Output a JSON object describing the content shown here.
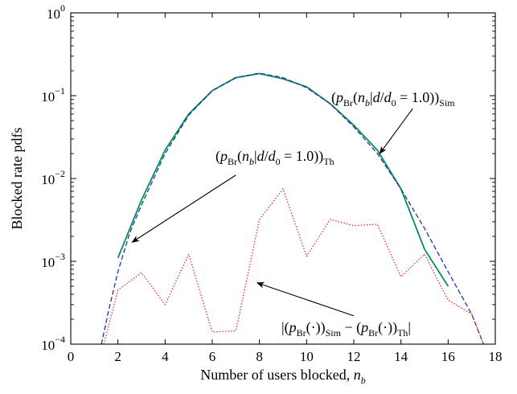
{
  "chart_data": {
    "type": "line",
    "xlabel": "Number of users blocked, ",
    "xlabel_var": "n",
    "xlabel_sub": "b",
    "ylabel": "Blocked rate pdfs",
    "xlim": [
      0,
      18
    ],
    "ylim": [
      0.0001,
      1
    ],
    "yscale": "log",
    "grid": false,
    "x_ticks": [
      "0",
      "2",
      "4",
      "6",
      "8",
      "10",
      "12",
      "14",
      "16",
      "18"
    ],
    "y_ticks": [
      {
        "base": "10",
        "exp": "−4"
      },
      {
        "base": "10",
        "exp": "−3"
      },
      {
        "base": "10",
        "exp": "−2"
      },
      {
        "base": "10",
        "exp": "−1"
      },
      {
        "base": "10",
        "exp": "0"
      }
    ],
    "series": [
      {
        "key": "sim",
        "color": "#00915a",
        "style": "solid",
        "x": [
          2,
          3,
          4,
          5,
          6,
          7,
          8,
          9,
          10,
          11,
          12,
          13,
          14,
          15,
          16
        ],
        "y": [
          0.0011,
          0.0055,
          0.022,
          0.06,
          0.115,
          0.165,
          0.185,
          0.16,
          0.128,
          0.08,
          0.044,
          0.022,
          0.0075,
          0.0014,
          0.0005
        ]
      },
      {
        "key": "th",
        "color": "#2233aa",
        "style": "dashed",
        "x": [
          1.3,
          1.6,
          2,
          2.5,
          3,
          4,
          5,
          6,
          7,
          8,
          9,
          10,
          11,
          12,
          13,
          14,
          15,
          16,
          17,
          17.5
        ],
        "y": [
          0.0001,
          0.00025,
          0.00075,
          0.0022,
          0.0048,
          0.02,
          0.058,
          0.115,
          0.165,
          0.187,
          0.165,
          0.125,
          0.08,
          0.042,
          0.02,
          0.0075,
          0.0025,
          0.00075,
          0.00023,
          0.0001
        ]
      },
      {
        "key": "diff",
        "color": "#e8202a",
        "style": "dotted",
        "x": [
          1.4,
          2,
          3,
          4,
          5,
          6,
          7,
          8,
          9,
          10,
          11,
          12,
          13,
          14,
          15,
          16,
          17,
          17.5
        ],
        "y": [
          0.0001,
          0.00045,
          0.00073,
          0.0003,
          0.00122,
          0.00014,
          0.000145,
          0.0032,
          0.0075,
          0.00115,
          0.0032,
          0.0027,
          0.0028,
          0.00065,
          0.00122,
          0.00034,
          0.00023,
          0.0001
        ]
      }
    ],
    "annotations": [
      {
        "key": "sim",
        "parts": [
          {
            "t": "(",
            "s": "n"
          },
          {
            "t": "p",
            "s": "i"
          },
          {
            "t": "Br",
            "s": "sub"
          },
          {
            "t": "(",
            "s": "n"
          },
          {
            "t": "n",
            "s": "i"
          },
          {
            "t": "b",
            "s": "isub"
          },
          {
            "t": "|",
            "s": "n"
          },
          {
            "t": "d",
            "s": "i"
          },
          {
            "t": "/",
            "s": "n"
          },
          {
            "t": "d",
            "s": "i"
          },
          {
            "t": "0",
            "s": "sub"
          },
          {
            "t": " = 1.0))",
            "s": "n"
          },
          {
            "t": "Sim",
            "s": "sub"
          }
        ],
        "tip": [
          13.1,
          0.02
        ],
        "tail": [
          14.5,
          0.07
        ]
      },
      {
        "key": "th",
        "parts": [
          {
            "t": "(",
            "s": "n"
          },
          {
            "t": "p",
            "s": "i"
          },
          {
            "t": "Br",
            "s": "sub"
          },
          {
            "t": "(",
            "s": "n"
          },
          {
            "t": "n",
            "s": "i"
          },
          {
            "t": "b",
            "s": "isub"
          },
          {
            "t": "|",
            "s": "n"
          },
          {
            "t": "d",
            "s": "i"
          },
          {
            "t": "/",
            "s": "n"
          },
          {
            "t": "d",
            "s": "i"
          },
          {
            "t": "0",
            "s": "sub"
          },
          {
            "t": " = 1.0))",
            "s": "n"
          },
          {
            "t": "Th",
            "s": "sub"
          }
        ],
        "tip": [
          2.6,
          0.0017
        ],
        "tail": [
          7.0,
          0.011
        ]
      },
      {
        "key": "diff",
        "parts": [
          {
            "t": "|(",
            "s": "n"
          },
          {
            "t": "p",
            "s": "i"
          },
          {
            "t": "Br",
            "s": "sub"
          },
          {
            "t": "(·))",
            "s": "n"
          },
          {
            "t": "Sim",
            "s": "sub"
          },
          {
            "t": " − (",
            "s": "n"
          },
          {
            "t": "p",
            "s": "i"
          },
          {
            "t": "Br",
            "s": "sub"
          },
          {
            "t": "(·))",
            "s": "n"
          },
          {
            "t": "Th",
            "s": "sub"
          },
          {
            "t": "|",
            "s": "n"
          }
        ],
        "tip": [
          7.9,
          0.00055
        ],
        "tail": [
          12.0,
          0.00022
        ]
      }
    ]
  }
}
